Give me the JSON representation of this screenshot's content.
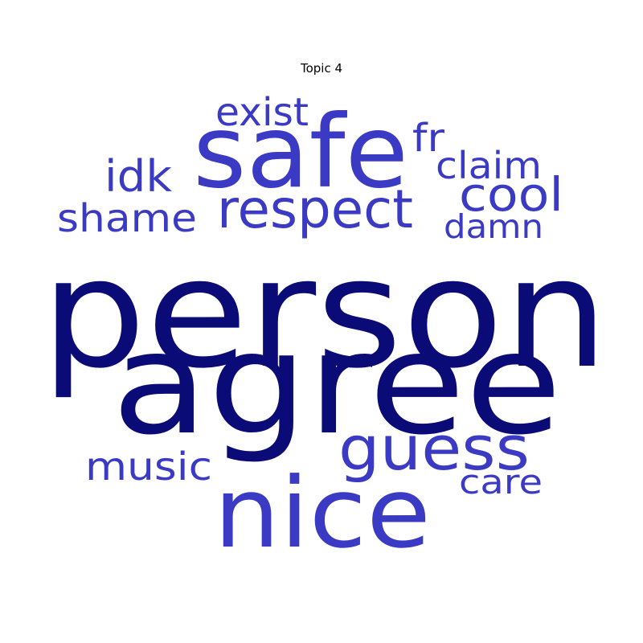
{
  "chart_data": {
    "type": "wordcloud",
    "title": "Topic 4",
    "colors": {
      "high": "#0b0b78",
      "mid": "#3a3ac4"
    },
    "words": [
      {
        "text": "person",
        "weight": 1.0,
        "color": "#0b0b78"
      },
      {
        "text": "agree",
        "weight": 0.92,
        "color": "#0b0b78"
      },
      {
        "text": "safe",
        "weight": 0.66,
        "color": "#3a3ac4"
      },
      {
        "text": "nice",
        "weight": 0.64,
        "color": "#3a3ac4"
      },
      {
        "text": "guess",
        "weight": 0.42,
        "color": "#3a3ac4"
      },
      {
        "text": "respect",
        "weight": 0.35,
        "color": "#3a3ac4"
      },
      {
        "text": "cool",
        "weight": 0.31,
        "color": "#3a3ac4"
      },
      {
        "text": "idk",
        "weight": 0.28,
        "color": "#3a3ac4"
      },
      {
        "text": "exist",
        "weight": 0.25,
        "color": "#3a3ac4"
      },
      {
        "text": "fr",
        "weight": 0.25,
        "color": "#3a3ac4"
      },
      {
        "text": "shame",
        "weight": 0.25,
        "color": "#3a3ac4"
      },
      {
        "text": "music",
        "weight": 0.25,
        "color": "#3a3ac4"
      },
      {
        "text": "claim",
        "weight": 0.24,
        "color": "#3a3ac4"
      },
      {
        "text": "care",
        "weight": 0.22,
        "color": "#3a3ac4"
      },
      {
        "text": "damn",
        "weight": 0.21,
        "color": "#3a3ac4"
      }
    ]
  }
}
